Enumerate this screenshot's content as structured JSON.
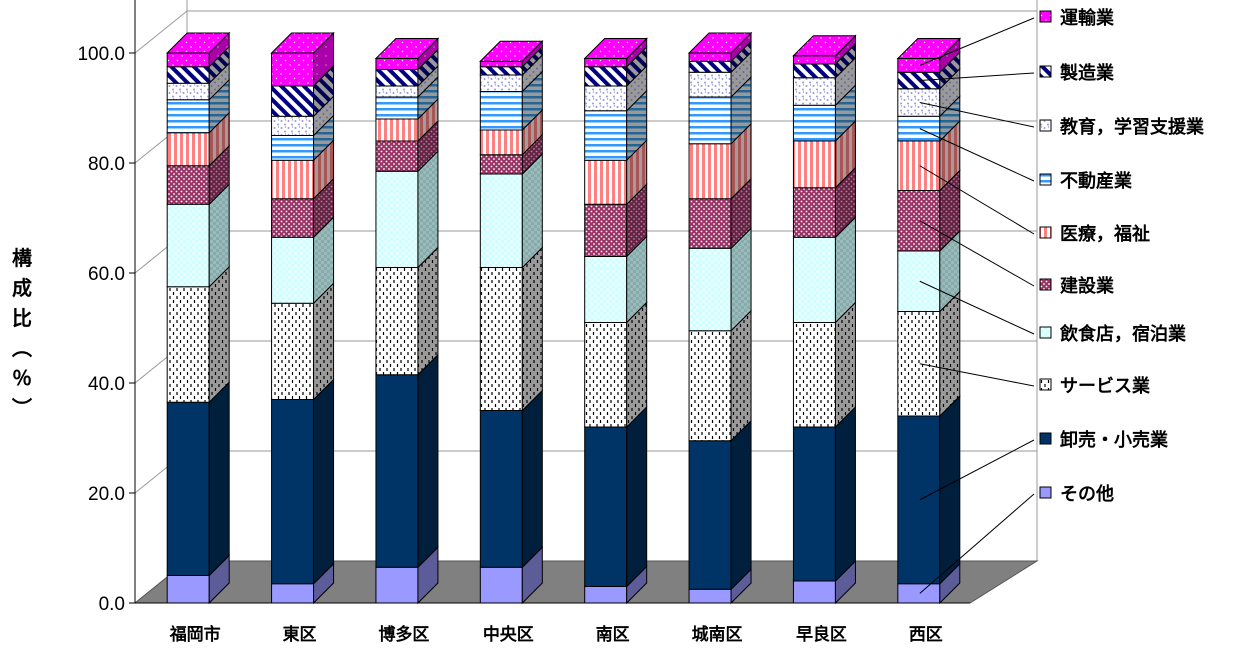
{
  "chart_data": {
    "type": "bar",
    "stacked": true,
    "three_d": true,
    "ylabel": "構成比（％）",
    "ylim": [
      0,
      100
    ],
    "yticks": [
      "0.0",
      "20.0",
      "40.0",
      "60.0",
      "80.0",
      "100.0"
    ],
    "grid": true,
    "legend_position": "right",
    "categories": [
      "福岡市",
      "東区",
      "博多区",
      "中央区",
      "南区",
      "城南区",
      "早良区",
      "西区"
    ],
    "series": [
      {
        "name": "その他",
        "color": "#9999ff",
        "pattern": "solid",
        "values": [
          5.0,
          3.5,
          6.5,
          6.5,
          3.0,
          2.5,
          4.0,
          3.5
        ]
      },
      {
        "name": "卸売・小売業",
        "color": "#003366",
        "pattern": "solid",
        "values": [
          31.5,
          33.5,
          35.0,
          28.5,
          29.0,
          27.0,
          28.0,
          30.5
        ]
      },
      {
        "name": "サービス業",
        "color": "#ffffff",
        "pattern": "dashes",
        "values": [
          21.0,
          17.5,
          19.5,
          26.0,
          19.0,
          20.0,
          19.0,
          19.0
        ]
      },
      {
        "name": "飲食店，宿泊業",
        "color": "#ccffff",
        "pattern": "checker",
        "values": [
          15.0,
          12.0,
          17.5,
          17.0,
          12.0,
          15.0,
          15.5,
          11.0
        ]
      },
      {
        "name": "建設業",
        "color": "#993366",
        "pattern": "dots",
        "values": [
          7.0,
          7.0,
          5.5,
          3.5,
          9.5,
          9.0,
          9.0,
          11.0
        ]
      },
      {
        "name": "医療，福祉",
        "color": "#ff8080",
        "pattern": "vstripes",
        "values": [
          6.0,
          7.0,
          4.0,
          4.5,
          8.0,
          10.0,
          8.5,
          9.0
        ]
      },
      {
        "name": "不動産業",
        "color": "#3399ff",
        "pattern": "hstripes",
        "values": [
          6.0,
          4.5,
          4.0,
          7.0,
          9.0,
          8.5,
          6.5,
          4.5
        ]
      },
      {
        "name": "教育，学習支援業",
        "color": "#ccccff",
        "pattern": "speckle",
        "values": [
          3.0,
          3.5,
          2.0,
          3.0,
          4.5,
          4.5,
          5.0,
          5.0
        ]
      },
      {
        "name": "製造業",
        "color": "#000080",
        "pattern": "diagonal",
        "values": [
          3.0,
          5.5,
          3.0,
          1.5,
          3.5,
          2.0,
          2.5,
          3.0
        ]
      },
      {
        "name": "運輸業",
        "color": "#ff00ff",
        "pattern": "sparkle",
        "values": [
          2.5,
          6.0,
          2.0,
          1.0,
          1.5,
          1.5,
          1.5,
          2.5
        ]
      }
    ]
  }
}
